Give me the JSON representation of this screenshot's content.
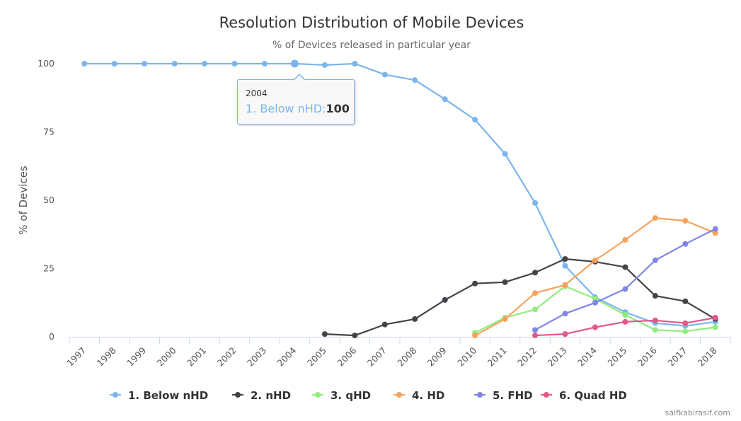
{
  "chart_data": {
    "type": "line",
    "title": "Resolution Distribution of Mobile Devices",
    "subtitle": "% of Devices released in particular year",
    "xlabel": "",
    "ylabel": "% of Devices",
    "x": [
      "1997",
      "1998",
      "1999",
      "2000",
      "2001",
      "2002",
      "2003",
      "2004",
      "2005",
      "2006",
      "2007",
      "2008",
      "2009",
      "2010",
      "2011",
      "2012",
      "2013",
      "2014",
      "2015",
      "2016",
      "2017",
      "2018"
    ],
    "ylim": [
      0,
      100
    ],
    "yticks": [
      "0",
      "25",
      "50",
      "75",
      "100"
    ],
    "grid": false,
    "legend_position": "bottom",
    "series": [
      {
        "name": "1. Below nHD",
        "color": "#7cb5ec",
        "values": [
          100,
          100,
          100,
          100,
          100,
          100,
          100,
          100,
          99.5,
          100,
          96,
          94,
          87,
          79.5,
          67,
          49,
          26,
          14.5,
          9,
          5,
          4,
          5.5
        ]
      },
      {
        "name": "2. nHD",
        "color": "#434348",
        "values": [
          null,
          null,
          null,
          null,
          null,
          null,
          null,
          null,
          1,
          0.5,
          4.5,
          6.5,
          13.5,
          19.5,
          20,
          23.5,
          28.5,
          27.5,
          25.5,
          15,
          13,
          6.5
        ]
      },
      {
        "name": "3. qHD",
        "color": "#90ed7d",
        "values": [
          null,
          null,
          null,
          null,
          null,
          null,
          null,
          null,
          null,
          null,
          null,
          null,
          null,
          1.5,
          7,
          10,
          18.5,
          14,
          8,
          2.5,
          2,
          3.5
        ]
      },
      {
        "name": "4. HD",
        "color": "#f7a35c",
        "values": [
          null,
          null,
          null,
          null,
          null,
          null,
          null,
          null,
          null,
          null,
          null,
          null,
          null,
          0.5,
          6.5,
          16,
          19,
          28,
          35.5,
          43.5,
          42.5,
          38
        ]
      },
      {
        "name": "5. FHD",
        "color": "#8085e9",
        "values": [
          null,
          null,
          null,
          null,
          null,
          null,
          null,
          null,
          null,
          null,
          null,
          null,
          null,
          null,
          null,
          2.5,
          8.5,
          12.5,
          17.5,
          28,
          34,
          39.5
        ]
      },
      {
        "name": "6. Quad HD",
        "color": "#e4578a",
        "values": [
          null,
          null,
          null,
          null,
          null,
          null,
          null,
          null,
          null,
          null,
          null,
          null,
          null,
          null,
          null,
          0.5,
          1,
          3.5,
          5.5,
          6,
          5,
          7
        ]
      }
    ]
  },
  "tooltip": {
    "year": "2004",
    "series_label": "1. Below nHD:",
    "value": "100"
  },
  "credit": "saifkabirasif.com"
}
